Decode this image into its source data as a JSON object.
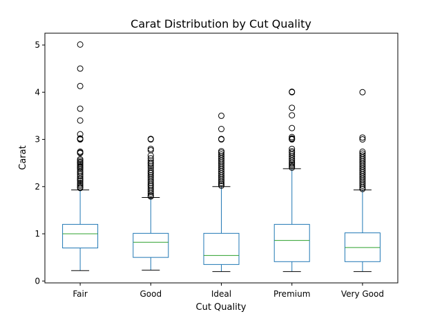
{
  "chart_data": {
    "type": "box",
    "title": "Carat Distribution by Cut Quality",
    "xlabel": "Cut Quality",
    "ylabel": "Carat",
    "ylim": [
      -0.04,
      5.25
    ],
    "yticks": [
      "0",
      "1",
      "2",
      "3",
      "4",
      "5"
    ],
    "grid": false,
    "categories": [
      "Fair",
      "Good",
      "Ideal",
      "Premium",
      "Very Good"
    ],
    "box_color": "#1f77b4",
    "median_color": "#2ca02c",
    "boxes": [
      {
        "name": "Fair",
        "whisker_low": 0.22,
        "q1": 0.7,
        "median": 1.0,
        "q3": 1.2,
        "whisker_high": 1.93,
        "outliers": [
          5.01,
          4.5,
          4.13,
          3.65,
          3.4,
          3.11,
          3.02,
          3.01,
          3.0,
          2.74,
          2.72,
          2.71,
          2.58,
          2.55,
          2.52,
          2.51,
          2.48,
          2.45,
          2.42,
          2.4,
          2.37,
          2.33,
          2.3,
          2.26,
          2.22,
          2.18,
          2.15,
          2.12,
          2.08,
          2.05,
          2.02,
          1.99,
          1.97
        ]
      },
      {
        "name": "Good",
        "whisker_low": 0.23,
        "q1": 0.5,
        "median": 0.82,
        "q3": 1.01,
        "whisker_high": 1.77,
        "outliers": [
          3.01,
          3.0,
          2.8,
          2.77,
          2.66,
          2.6,
          2.55,
          2.51,
          2.48,
          2.44,
          2.4,
          2.35,
          2.31,
          2.28,
          2.24,
          2.2,
          2.16,
          2.12,
          2.08,
          2.04,
          2.01,
          1.97,
          1.93,
          1.89,
          1.85,
          1.81,
          1.79
        ]
      },
      {
        "name": "Ideal",
        "whisker_low": 0.2,
        "q1": 0.35,
        "median": 0.54,
        "q3": 1.01,
        "whisker_high": 2.0,
        "outliers": [
          3.5,
          3.22,
          3.01,
          3.0,
          2.75,
          2.72,
          2.68,
          2.64,
          2.6,
          2.56,
          2.52,
          2.48,
          2.44,
          2.4,
          2.36,
          2.32,
          2.28,
          2.24,
          2.2,
          2.16,
          2.12,
          2.08,
          2.05,
          2.02
        ]
      },
      {
        "name": "Premium",
        "whisker_low": 0.2,
        "q1": 0.41,
        "median": 0.86,
        "q3": 1.2,
        "whisker_high": 2.38,
        "outliers": [
          4.01,
          4.0,
          3.67,
          3.51,
          3.24,
          3.05,
          3.02,
          3.01,
          3.0,
          2.8,
          2.75,
          2.72,
          2.68,
          2.64,
          2.6,
          2.56,
          2.52,
          2.49,
          2.46,
          2.43,
          2.4
        ]
      },
      {
        "name": "Very Good",
        "whisker_low": 0.2,
        "q1": 0.41,
        "median": 0.71,
        "q3": 1.02,
        "whisker_high": 1.93,
        "outliers": [
          4.0,
          3.04,
          3.0,
          2.74,
          2.7,
          2.66,
          2.62,
          2.58,
          2.54,
          2.5,
          2.46,
          2.42,
          2.38,
          2.34,
          2.3,
          2.26,
          2.22,
          2.18,
          2.14,
          2.1,
          2.06,
          2.02,
          1.98,
          1.95
        ]
      }
    ]
  }
}
